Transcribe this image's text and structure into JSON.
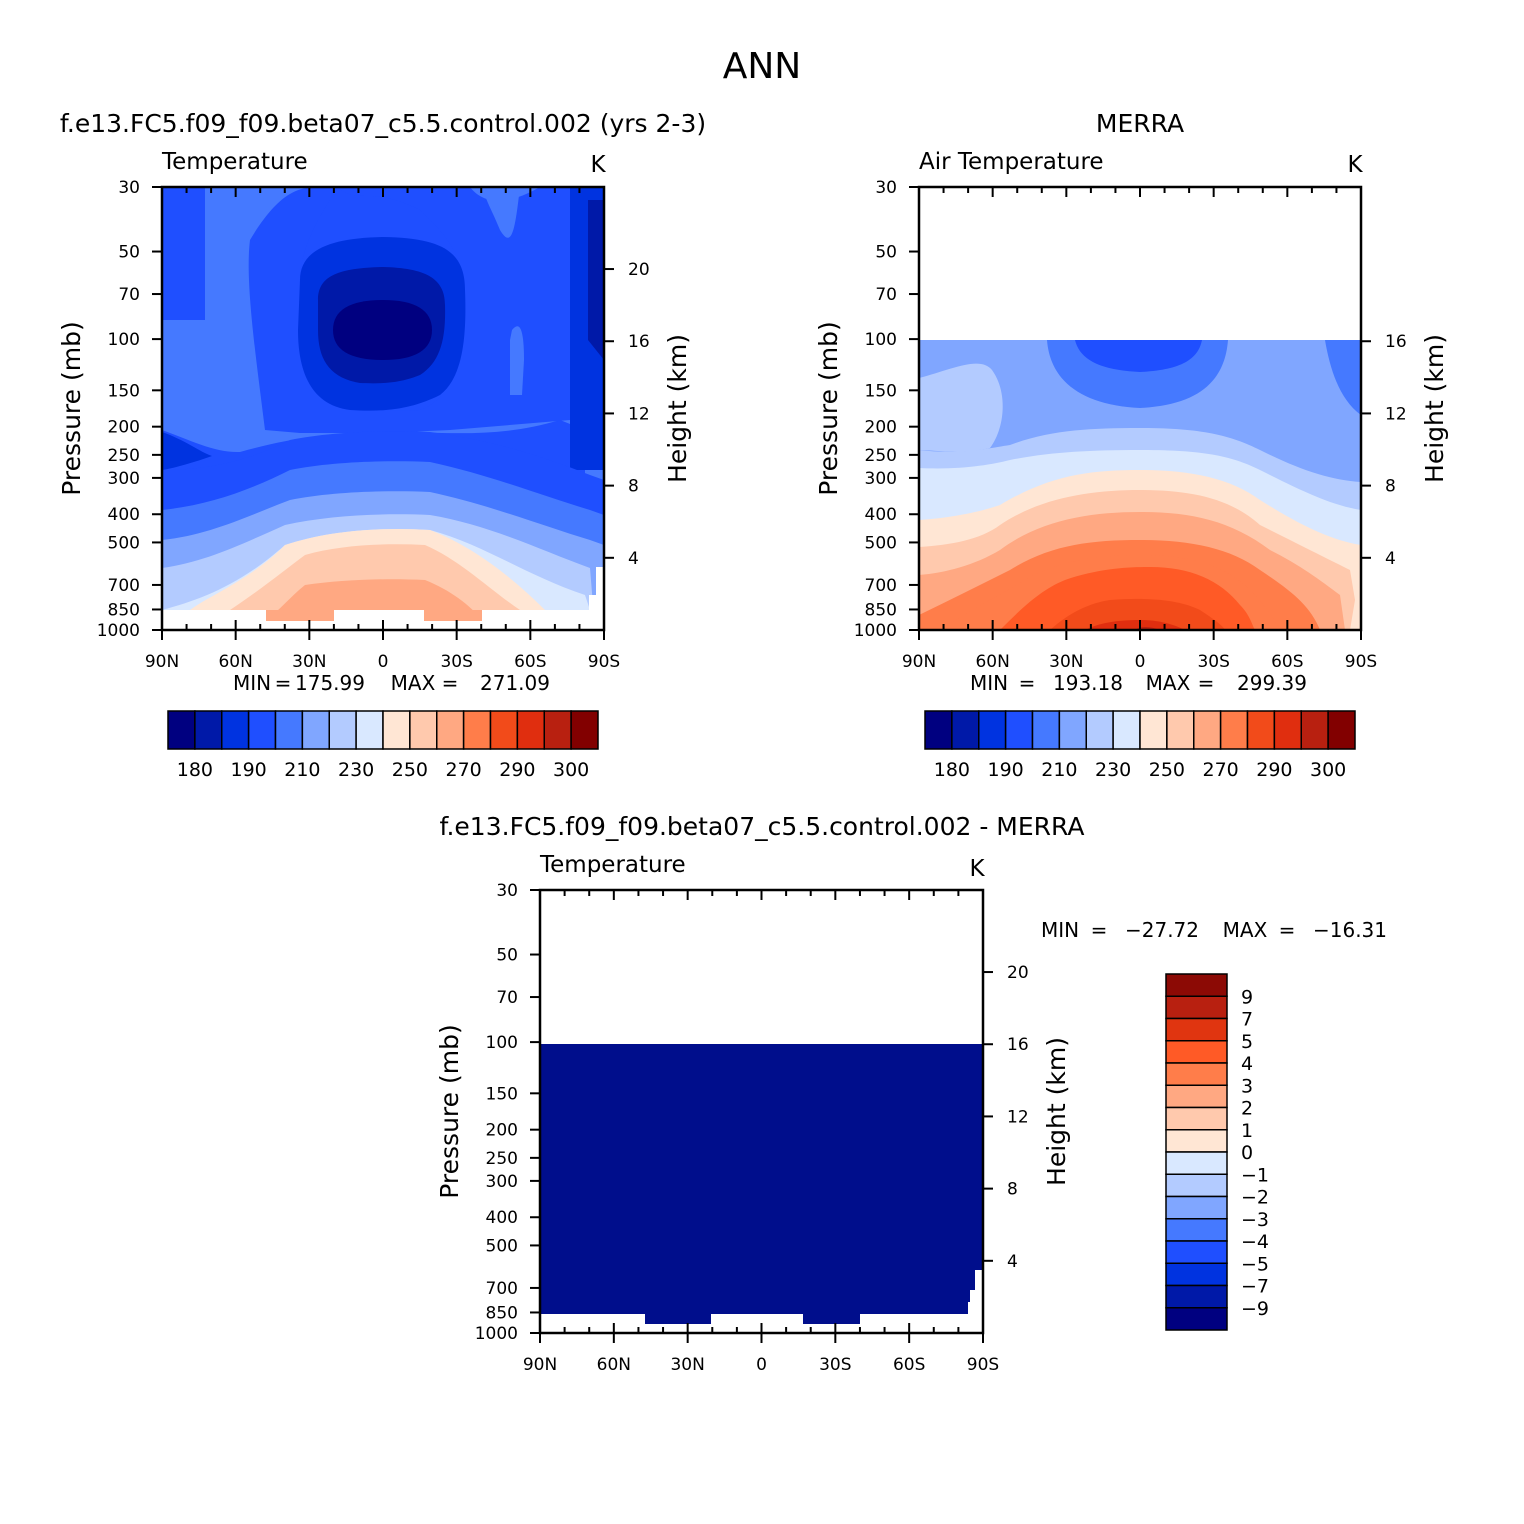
{
  "main_title": "ANN",
  "colors": {
    "abs": [
      "#000080",
      "#0019a8",
      "#0033e0",
      "#1f4fff",
      "#4579ff",
      "#80a6ff",
      "#b3cbff",
      "#d9e8ff",
      "#ffe6d4",
      "#ffc9ad",
      "#ffa882",
      "#ff7d4a",
      "#f24b1a",
      "#e02e0f",
      "#b82010",
      "#820000"
    ],
    "diff": [
      "#000080",
      "#0019a8",
      "#0033e0",
      "#1f4fff",
      "#4579ff",
      "#80a6ff",
      "#b3cbff",
      "#d9e8ff",
      "#ffe6d4",
      "#ffc9ad",
      "#ffa882",
      "#ff7d4a",
      "#ff5a26",
      "#e03510",
      "#b82010",
      "#8c0a05"
    ]
  },
  "chart_data": [
    {
      "id": "model",
      "type": "contour",
      "title": "f.e13.FC5.f09_f09.beta07_c5.5.control.002 (yrs 2-3)",
      "left_label": "Temperature",
      "right_label": "K",
      "ylabel": "Pressure (mb)",
      "ylabel2": "Height (km)",
      "pressure_ticks": [
        "30",
        "50",
        "70",
        "100",
        "150",
        "200",
        "250",
        "300",
        "400",
        "500",
        "700",
        "850",
        "1000"
      ],
      "height_ticks": [
        "20",
        "16",
        "12",
        "8",
        "4"
      ],
      "lat_ticks": [
        "90N",
        "60N",
        "30N",
        "0",
        "30S",
        "60S",
        "90S"
      ],
      "ylim_mb": [
        1000,
        30
      ],
      "xlim_lat": [
        90,
        -90
      ],
      "min_label": "MIN",
      "min_value": "175.99",
      "max_label": "MAX",
      "max_value": "271.09",
      "colorbar_labels": [
        "180",
        "190",
        "210",
        "230",
        "250",
        "270",
        "290",
        "300"
      ]
    },
    {
      "id": "obs",
      "type": "contour",
      "title": "MERRA",
      "left_label": "Air Temperature",
      "right_label": "K",
      "ylabel": "Pressure (mb)",
      "ylabel2": "Height (km)",
      "pressure_ticks": [
        "30",
        "50",
        "70",
        "100",
        "150",
        "200",
        "250",
        "300",
        "400",
        "500",
        "700",
        "850",
        "1000"
      ],
      "height_ticks": [
        "16",
        "12",
        "8",
        "4"
      ],
      "lat_ticks": [
        "90N",
        "60N",
        "30N",
        "0",
        "30S",
        "60S",
        "90S"
      ],
      "ylim_mb": [
        1000,
        30
      ],
      "xlim_lat": [
        90,
        -90
      ],
      "data_top_mb": 100,
      "min_label": "MIN",
      "min_value": "193.18",
      "max_label": "MAX",
      "max_value": "299.39",
      "colorbar_labels": [
        "180",
        "190",
        "210",
        "230",
        "250",
        "270",
        "290",
        "300"
      ]
    },
    {
      "id": "diff",
      "type": "contour",
      "title": "f.e13.FC5.f09_f09.beta07_c5.5.control.002 - MERRA",
      "left_label": "Temperature",
      "right_label": "K",
      "ylabel": "Pressure (mb)",
      "ylabel2": "Height (km)",
      "pressure_ticks": [
        "30",
        "50",
        "70",
        "100",
        "150",
        "200",
        "250",
        "300",
        "400",
        "500",
        "700",
        "850",
        "1000"
      ],
      "height_ticks": [
        "20",
        "16",
        "12",
        "8",
        "4"
      ],
      "lat_ticks": [
        "90N",
        "60N",
        "30N",
        "0",
        "30S",
        "60S",
        "90S"
      ],
      "ylim_mb": [
        1000,
        30
      ],
      "xlim_lat": [
        90,
        -90
      ],
      "data_top_mb": 100,
      "min_label": "MIN",
      "min_value": "-27.72",
      "max_label": "MAX",
      "max_value": "-16.31",
      "colorbar_labels": [
        "9",
        "7",
        "5",
        "4",
        "3",
        "2",
        "1",
        "0",
        "-1",
        "-2",
        "-3",
        "-4",
        "-5",
        "-7",
        "-9"
      ]
    }
  ]
}
